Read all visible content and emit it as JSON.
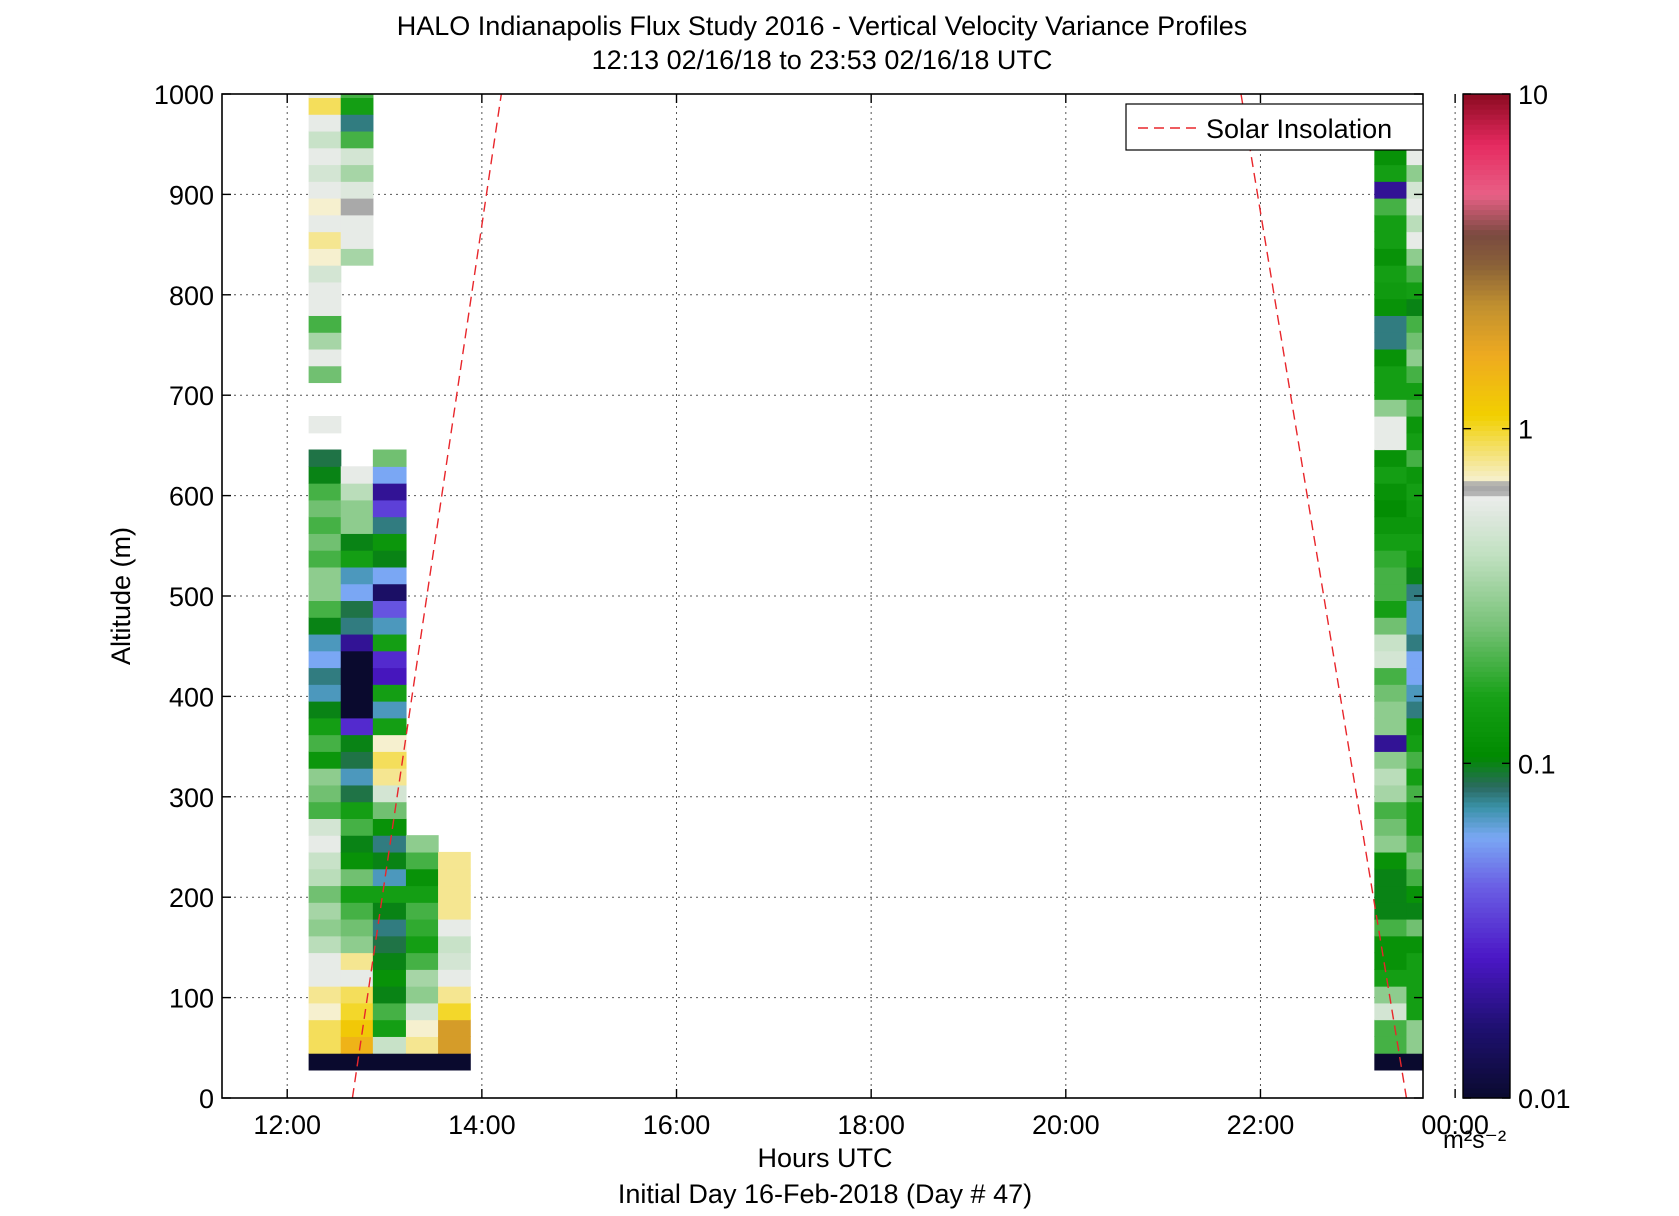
{
  "chart_data": {
    "type": "heatmap",
    "title": "HALO Indianapolis Flux Study 2016 - Vertical Velocity Variance Profiles",
    "subtitle": "12:13 02/16/18 to 23:53 02/16/18  UTC",
    "xlabel": "Hours UTC",
    "xlabel2": "Initial Day 16-Feb-2018 (Day # 47)",
    "ylabel": "Altitude (m)",
    "xlim": [
      11.33,
      23.67
    ],
    "ylim": [
      0,
      1000
    ],
    "grid": true,
    "x_ticks": [
      12,
      14,
      16,
      18,
      20,
      22,
      24
    ],
    "x_tick_labels": [
      "12:00",
      "14:00",
      "16:00",
      "18:00",
      "20:00",
      "22:00",
      "00:00"
    ],
    "y_ticks": [
      0,
      100,
      200,
      300,
      400,
      500,
      600,
      700,
      800,
      900,
      1000
    ],
    "y_tick_labels": [
      "0",
      "100",
      "200",
      "300",
      "400",
      "500",
      "600",
      "700",
      "800",
      "900",
      "1000"
    ],
    "legend": {
      "position": "top-right",
      "entries": [
        {
          "label": "Solar Insolation",
          "color": "#e8262b",
          "style": "dashed"
        }
      ]
    },
    "solar_insolation": {
      "color": "#e8262b",
      "segments": [
        [
          [
            12.67,
            0
          ],
          [
            14.2,
            1000
          ]
        ],
        [
          [
            21.8,
            1000
          ],
          [
            23.5,
            0
          ]
        ]
      ]
    },
    "colorbar": {
      "scale": "log",
      "range": [
        0.01,
        10
      ],
      "ticks": [
        0.01,
        0.1,
        1,
        10
      ],
      "tick_labels": [
        "0.01",
        "0.1",
        "1",
        "10"
      ],
      "units": "m²s⁻²",
      "stops": [
        [
          0.0,
          "#0a0a2e"
        ],
        [
          0.07,
          "#1e1070"
        ],
        [
          0.14,
          "#4b17c6"
        ],
        [
          0.21,
          "#6a5de4"
        ],
        [
          0.26,
          "#7aa8f4"
        ],
        [
          0.29,
          "#3a92a8"
        ],
        [
          0.31,
          "#2a6a60"
        ],
        [
          0.34,
          "#008a00"
        ],
        [
          0.4,
          "#17a117"
        ],
        [
          0.47,
          "#77c277"
        ],
        [
          0.54,
          "#c0e0c0"
        ],
        [
          0.6,
          "#ececec"
        ],
        [
          0.603,
          "#a9a9a9"
        ],
        [
          0.612,
          "#a9a9a9"
        ],
        [
          0.615,
          "#f6f0cf"
        ],
        [
          0.68,
          "#f2d000"
        ],
        [
          0.74,
          "#eeaa20"
        ],
        [
          0.79,
          "#c09030"
        ],
        [
          0.83,
          "#8a6138"
        ],
        [
          0.86,
          "#7a4a40"
        ],
        [
          0.9,
          "#e86086"
        ],
        [
          0.95,
          "#e62a60"
        ],
        [
          1.0,
          "#8a0a20"
        ]
      ]
    },
    "bin_height": 16.7,
    "columns": [
      {
        "x_start": 12.22,
        "x_end": 12.55,
        "y_start": 28,
        "values": [
          0.01,
          0.9,
          0.9,
          0.7,
          0.8,
          0.6,
          0.6,
          0.4,
          0.3,
          0.35,
          0.25,
          0.4,
          0.45,
          0.6,
          0.5,
          0.2,
          0.25,
          0.3,
          0.13,
          0.2,
          0.15,
          0.1,
          0.07,
          0.08,
          0.06,
          0.07,
          0.1,
          0.2,
          0.3,
          0.3,
          0.2,
          0.25,
          0.2,
          0.25,
          0.2,
          0.1,
          0.09,
          null,
          0.6,
          null,
          null,
          0.25,
          0.6,
          0.35,
          0.2,
          0.6,
          0.6,
          0.5,
          0.7,
          0.8,
          0.6,
          0.7,
          0.6,
          0.5,
          0.6,
          0.45,
          0.6,
          0.9,
          0.6
        ]
      },
      {
        "x_start": 12.55,
        "x_end": 12.88,
        "y_start": 28,
        "values": [
          0.01,
          1.5,
          1.2,
          1.0,
          0.9,
          0.6,
          0.8,
          0.3,
          0.25,
          0.2,
          0.15,
          0.25,
          0.12,
          0.1,
          0.2,
          0.15,
          0.09,
          0.07,
          0.09,
          0.1,
          0.03,
          0.01,
          0.01,
          0.01,
          0.01,
          0.02,
          0.08,
          0.09,
          0.06,
          0.07,
          0.15,
          0.1,
          0.3,
          0.3,
          0.4,
          0.6,
          null,
          null,
          null,
          null,
          null,
          null,
          null,
          null,
          null,
          null,
          null,
          null,
          0.35,
          0.6,
          0.6,
          0.65,
          0.55,
          0.35,
          0.5,
          0.2,
          0.08,
          0.15,
          0.2
        ]
      },
      {
        "x_start": 12.88,
        "x_end": 13.22,
        "y_start": 28,
        "values": [
          0.01,
          0.45,
          0.15,
          0.2,
          0.1,
          0.12,
          0.1,
          0.09,
          0.08,
          0.1,
          0.15,
          0.07,
          0.1,
          0.08,
          0.12,
          0.25,
          0.5,
          0.8,
          0.9,
          0.7,
          0.15,
          0.07,
          0.15,
          0.025,
          0.03,
          0.15,
          0.07,
          0.04,
          0.015,
          0.06,
          0.1,
          0.13,
          0.08,
          0.035,
          0.02,
          0.06,
          0.25
        ]
      },
      {
        "x_start": 13.22,
        "x_end": 13.55,
        "y_start": 28,
        "values": [
          0.01,
          0.8,
          0.7,
          0.5,
          0.3,
          0.35,
          0.2,
          0.15,
          0.18,
          0.2,
          0.15,
          0.12,
          0.2,
          0.3
        ]
      },
      {
        "x_start": 13.55,
        "x_end": 13.88,
        "y_start": 28,
        "values": [
          0.01,
          2.0,
          2.0,
          1.0,
          0.8,
          0.6,
          0.5,
          0.45,
          0.6,
          0.8,
          0.8,
          0.8,
          0.8
        ]
      },
      {
        "x_start": 23.17,
        "x_end": 23.5,
        "y_start": 28,
        "values": [
          0.01,
          0.2,
          0.2,
          0.5,
          0.3,
          0.15,
          0.12,
          0.12,
          0.2,
          0.1,
          0.1,
          0.1,
          0.12,
          0.3,
          0.25,
          0.2,
          0.35,
          0.4,
          0.3,
          0.02,
          0.3,
          0.3,
          0.25,
          0.2,
          0.5,
          0.45,
          0.25,
          0.15,
          0.2,
          0.2,
          0.18,
          0.15,
          0.13,
          0.11,
          0.12,
          0.15,
          0.12,
          0.6,
          0.6,
          0.3,
          0.15,
          0.15,
          0.12,
          0.08,
          0.08,
          0.12,
          0.14,
          0.15,
          0.12,
          0.15,
          0.15,
          0.2,
          0.02,
          0.15,
          0.12
        ]
      },
      {
        "x_start": 23.5,
        "x_end": 23.83,
        "y_start": 28,
        "values": [
          0.01,
          0.3,
          0.3,
          0.15,
          0.15,
          0.15,
          0.15,
          0.12,
          0.25,
          0.1,
          0.12,
          0.2,
          0.25,
          0.2,
          0.15,
          0.15,
          0.2,
          0.15,
          0.2,
          0.15,
          0.13,
          0.08,
          0.07,
          0.06,
          0.06,
          0.08,
          0.07,
          0.07,
          0.08,
          0.1,
          0.13,
          0.15,
          0.13,
          0.14,
          0.15,
          0.13,
          0.2,
          0.15,
          0.13,
          0.2,
          0.15,
          0.2,
          0.3,
          0.25,
          0.2,
          0.1,
          0.15,
          0.2,
          0.3,
          0.6,
          0.4,
          0.6,
          0.5,
          0.3,
          0.6
        ]
      }
    ]
  }
}
